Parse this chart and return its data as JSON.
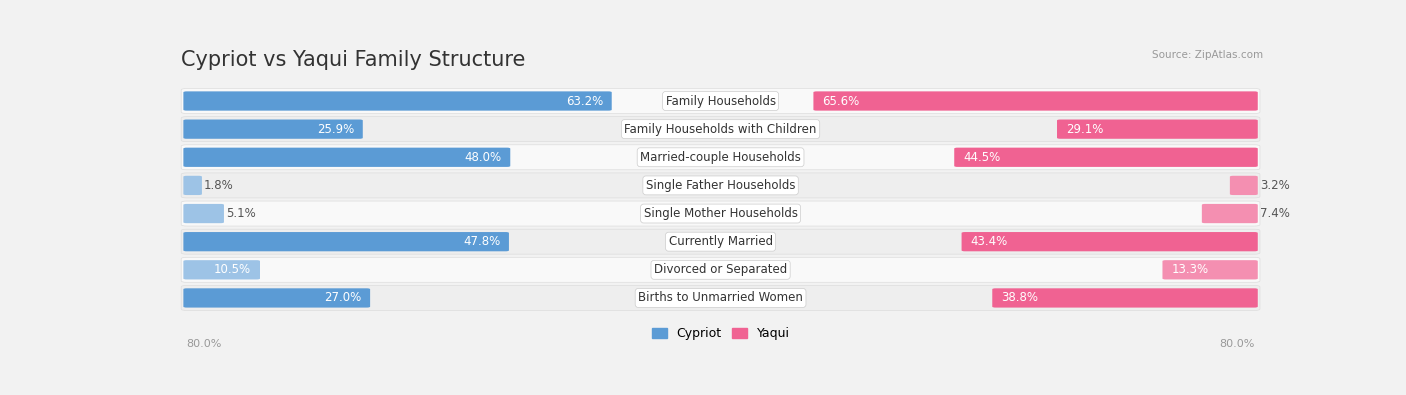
{
  "title": "Cypriot vs Yaqui Family Structure",
  "source": "Source: ZipAtlas.com",
  "categories": [
    "Family Households",
    "Family Households with Children",
    "Married-couple Households",
    "Single Father Households",
    "Single Mother Households",
    "Currently Married",
    "Divorced or Separated",
    "Births to Unmarried Women"
  ],
  "cypriot_values": [
    63.2,
    25.9,
    48.0,
    1.8,
    5.1,
    47.8,
    10.5,
    27.0
  ],
  "yaqui_values": [
    65.6,
    29.1,
    44.5,
    3.2,
    7.4,
    43.4,
    13.3,
    38.8
  ],
  "cypriot_color_strong": "#5B9BD5",
  "cypriot_color_light": "#9DC3E6",
  "yaqui_color_strong": "#F06292",
  "yaqui_color_light": "#F48FB1",
  "axis_max": 80.0,
  "axis_label_left": "80.0%",
  "axis_label_right": "80.0%",
  "background_color": "#f2f2f2",
  "row_bg_even": "#f9f9f9",
  "row_bg_odd": "#eeeeee",
  "title_fontsize": 15,
  "cat_fontsize": 8.5,
  "value_fontsize": 8.5,
  "legend_cypriot": "Cypriot",
  "legend_yaqui": "Yaqui",
  "strong_threshold": 15.0,
  "value_inside_threshold": 8.0
}
